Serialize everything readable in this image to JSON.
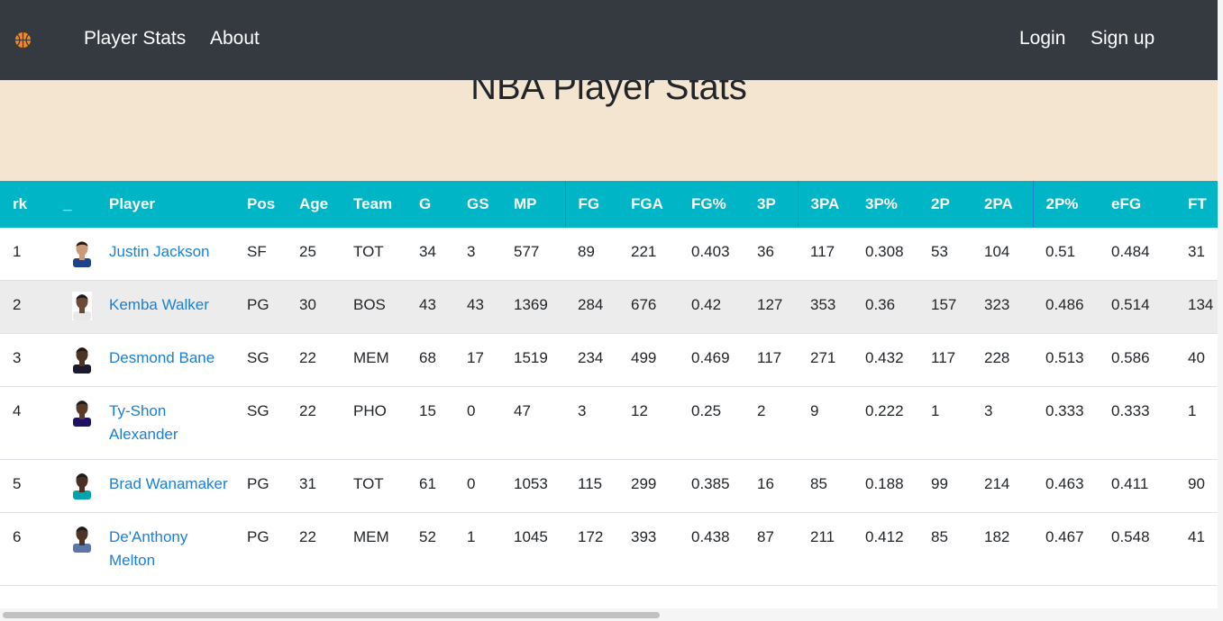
{
  "navbar": {
    "brand_icon": "basketball-icon",
    "links": {
      "player_stats": "Player Stats",
      "about": "About",
      "login": "Login",
      "signup": "Sign up"
    }
  },
  "hero": {
    "title": "NBA Player Stats"
  },
  "table": {
    "headers": [
      "rk",
      "_",
      "Player",
      "Pos",
      "Age",
      "Team",
      "G",
      "GS",
      "MP",
      "FG",
      "FGA",
      "FG%",
      "3P",
      "3PA",
      "3P%",
      "2P",
      "2PA",
      "2P%",
      "eFG",
      "FT"
    ],
    "rows": [
      [
        "1",
        "",
        "Justin Jackson",
        "SF",
        "25",
        "TOT",
        "34",
        "3",
        "577",
        "89",
        "221",
        "0.403",
        "36",
        "117",
        "0.308",
        "53",
        "104",
        "0.51",
        "0.484",
        "31"
      ],
      [
        "2",
        "",
        "Kemba Walker",
        "PG",
        "30",
        "BOS",
        "43",
        "43",
        "1369",
        "284",
        "676",
        "0.42",
        "127",
        "353",
        "0.36",
        "157",
        "323",
        "0.486",
        "0.514",
        "134"
      ],
      [
        "3",
        "",
        "Desmond Bane",
        "SG",
        "22",
        "MEM",
        "68",
        "17",
        "1519",
        "234",
        "499",
        "0.469",
        "117",
        "271",
        "0.432",
        "117",
        "228",
        "0.513",
        "0.586",
        "40"
      ],
      [
        "4",
        "",
        "Ty-Shon Alexander",
        "SG",
        "22",
        "PHO",
        "15",
        "0",
        "47",
        "3",
        "12",
        "0.25",
        "2",
        "9",
        "0.222",
        "1",
        "3",
        "0.333",
        "0.333",
        "1"
      ],
      [
        "5",
        "",
        "Brad Wanamaker",
        "PG",
        "31",
        "TOT",
        "61",
        "0",
        "1053",
        "115",
        "299",
        "0.385",
        "16",
        "85",
        "0.188",
        "99",
        "214",
        "0.463",
        "0.411",
        "90"
      ],
      [
        "6",
        "",
        "De'Anthony Melton",
        "PG",
        "22",
        "MEM",
        "52",
        "1",
        "1045",
        "172",
        "393",
        "0.438",
        "87",
        "211",
        "0.412",
        "85",
        "182",
        "0.467",
        "0.548",
        "41"
      ]
    ]
  },
  "colors": {
    "navbar_bg": "#343a40",
    "hero_bg": "#f4e5d1",
    "header_bg": "#00b5c6",
    "link": "#1a7fd6",
    "brand_orange": "#f08a24"
  }
}
